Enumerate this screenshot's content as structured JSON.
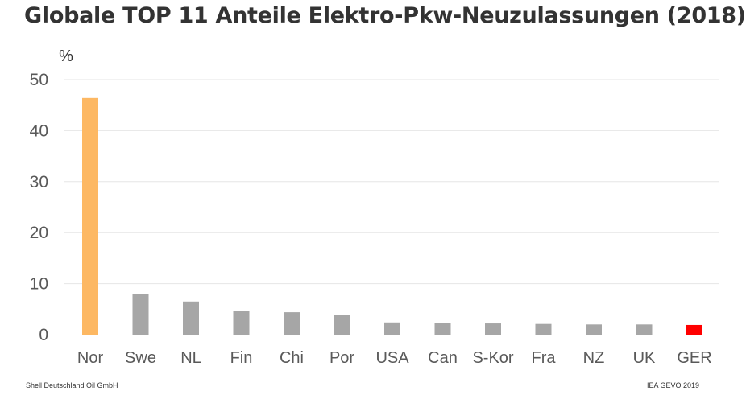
{
  "title": "Globale TOP 11 Anteile Elektro-Pkw-Neuzulassungen (2018)",
  "footer": {
    "left": "Shell Deutschland Oil GmbH",
    "right": "IEA GEVO 2019"
  },
  "chart_data": {
    "type": "bar",
    "title": "Globale TOP 11 Anteile Elektro-Pkw-Neuzulassungen (2018)",
    "ylabel": "%",
    "xlabel": "",
    "ylim": [
      0,
      50
    ],
    "yticks": [
      0,
      10,
      20,
      30,
      40,
      50
    ],
    "grid": true,
    "categories": [
      "Nor",
      "Swe",
      "NL",
      "Fin",
      "Chi",
      "Por",
      "USA",
      "Can",
      "S-Kor",
      "Fra",
      "NZ",
      "UK",
      "GER"
    ],
    "values": [
      46.4,
      7.9,
      6.5,
      4.7,
      4.4,
      3.8,
      2.4,
      2.3,
      2.2,
      2.1,
      2.0,
      2.0,
      1.9
    ],
    "colors": [
      "#fdb863",
      "#a6a6a6",
      "#a6a6a6",
      "#a6a6a6",
      "#a6a6a6",
      "#a6a6a6",
      "#a6a6a6",
      "#a6a6a6",
      "#a6a6a6",
      "#a6a6a6",
      "#a6a6a6",
      "#a6a6a6",
      "#ff0000"
    ]
  },
  "style": {
    "grid_color": "#e6e6e6",
    "axis_text_color": "#595959"
  }
}
